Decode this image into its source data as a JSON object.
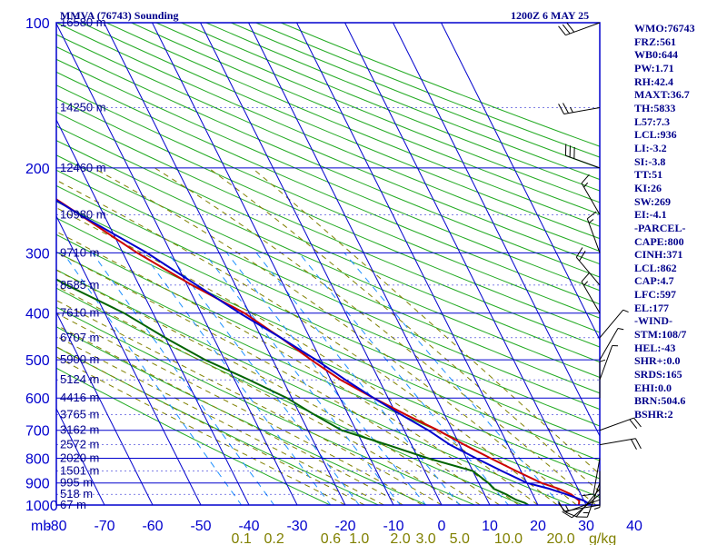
{
  "title": "MMVA (76743) Sounding",
  "valid_time": "1200Z  6 MAY 25",
  "units_label": "mb",
  "mixing_unit": "g/kg",
  "colors": {
    "frame": "#0000cd",
    "isotherm": "#0000cd",
    "dry_adiabat": "#22aa22",
    "moist_adiabat": "#808000",
    "mixing_ratio": "#1e90ff",
    "temperature": "#cc0000",
    "dewpoint": "#006400",
    "virtual_temp": "#0000cd",
    "wind_barb": "#000000",
    "text": "#00008b"
  },
  "stats": [
    "WMO:76743",
    "FRZ:561",
    "WB0:644",
    "PW:1.71",
    "RH:42.4",
    "MAXT:36.7",
    "TH:5833",
    "L57:7.3",
    "LCL:936",
    "LI:-3.2",
    "SI:-3.8",
    "TT:51",
    "KI:26",
    "SW:269",
    "EI:-4.1",
    "-PARCEL-",
    "CAPE:800",
    "CINH:371",
    "LCL:862",
    "CAP:4.7",
    "LFC:597",
    "EL:177",
    "-WIND-",
    "STM:108/7",
    "HEL:-43",
    "SHR+:0.0",
    "SRDS:165",
    "EHI:0.0",
    "BRN:504.6",
    "BSHR:2"
  ],
  "chart_data": {
    "type": "line",
    "diagram": "skew-T log-P",
    "title": "MMVA (76743) Sounding",
    "subtitle": "1200Z  6 MAY 25",
    "y_axis": {
      "label": "mb",
      "scale": "log",
      "ylim": [
        1000,
        100
      ],
      "ticks": [
        100,
        200,
        300,
        400,
        500,
        600,
        700,
        800,
        900,
        1000
      ]
    },
    "x_axis": {
      "ticks": [
        -80,
        -70,
        -60,
        -50,
        -40,
        -30,
        -20,
        -10,
        0,
        10,
        20,
        30,
        40
      ]
    },
    "mixing_ratio_labels": [
      "0.1",
      "0.2",
      "0.6",
      "1.0",
      "2.0",
      "3.0",
      "5.0",
      "10.0",
      "20.0"
    ],
    "height_labels": [
      {
        "pressure": 100,
        "label": "16580 m"
      },
      {
        "pressure": 150,
        "label": "14250 m"
      },
      {
        "pressure": 200,
        "label": "12460 m"
      },
      {
        "pressure": 250,
        "label": "10980 m"
      },
      {
        "pressure": 300,
        "label": "9710 m"
      },
      {
        "pressure": 350,
        "label": "8585 m"
      },
      {
        "pressure": 400,
        "label": "7610 m"
      },
      {
        "pressure": 450,
        "label": "6707 m"
      },
      {
        "pressure": 500,
        "label": "5900 m"
      },
      {
        "pressure": 550,
        "label": "5124 m"
      },
      {
        "pressure": 600,
        "label": "4416 m"
      },
      {
        "pressure": 650,
        "label": "3765 m"
      },
      {
        "pressure": 700,
        "label": "3162 m"
      },
      {
        "pressure": 750,
        "label": "2572 m"
      },
      {
        "pressure": 800,
        "label": "2020 m"
      },
      {
        "pressure": 850,
        "label": "1501 m"
      },
      {
        "pressure": 900,
        "label": "995 m"
      },
      {
        "pressure": 950,
        "label": "518 m"
      },
      {
        "pressure": 1000,
        "label": "67 m"
      }
    ],
    "series": [
      {
        "key": "temperature",
        "points": [
          [
            1000,
            28.5
          ],
          [
            980,
            29
          ],
          [
            950,
            28
          ],
          [
            925,
            26
          ],
          [
            900,
            23
          ],
          [
            850,
            19
          ],
          [
            800,
            15
          ],
          [
            750,
            11
          ],
          [
            700,
            7
          ],
          [
            650,
            2
          ],
          [
            600,
            -3
          ],
          [
            550,
            -8
          ],
          [
            500,
            -12
          ],
          [
            450,
            -16
          ],
          [
            400,
            -21
          ],
          [
            350,
            -29
          ],
          [
            300,
            -37
          ],
          [
            250,
            -45
          ],
          [
            200,
            -55
          ],
          [
            150,
            -66
          ],
          [
            125,
            -72
          ],
          [
            100,
            -80
          ]
        ]
      },
      {
        "key": "dewpoint",
        "points": [
          [
            1000,
            18
          ],
          [
            990,
            17.5
          ],
          [
            975,
            16
          ],
          [
            950,
            14.5
          ],
          [
            925,
            12.5
          ],
          [
            900,
            12
          ],
          [
            850,
            10
          ],
          [
            800,
            2
          ],
          [
            750,
            -5
          ],
          [
            700,
            -13
          ],
          [
            650,
            -17
          ],
          [
            600,
            -21
          ],
          [
            550,
            -27
          ],
          [
            500,
            -34
          ],
          [
            450,
            -40
          ],
          [
            400,
            -46
          ],
          [
            350,
            -55
          ],
          [
            300,
            -64
          ],
          [
            250,
            -65
          ],
          [
            200,
            -76
          ],
          [
            150,
            -85
          ],
          [
            125,
            -91
          ],
          [
            100,
            -100
          ]
        ]
      },
      {
        "key": "virtual_temp",
        "points": [
          [
            1000,
            31
          ],
          [
            980,
            30
          ],
          [
            950,
            27
          ],
          [
            925,
            24
          ],
          [
            900,
            20
          ],
          [
            850,
            16
          ],
          [
            800,
            12
          ],
          [
            750,
            8
          ],
          [
            700,
            5
          ],
          [
            650,
            1
          ],
          [
            600,
            -3
          ],
          [
            550,
            -7
          ],
          [
            500,
            -11
          ],
          [
            450,
            -16
          ],
          [
            400,
            -22
          ],
          [
            350,
            -28
          ],
          [
            300,
            -35
          ],
          [
            250,
            -45
          ],
          [
            200,
            -56
          ],
          [
            150,
            -68
          ],
          [
            125,
            -73
          ],
          [
            100,
            -80
          ]
        ]
      }
    ],
    "wind_barbs": [
      {
        "pressure": 1000,
        "dir": 260,
        "kt": 15
      },
      {
        "pressure": 975,
        "dir": 250,
        "kt": 10
      },
      {
        "pressure": 950,
        "dir": 230,
        "kt": 10
      },
      {
        "pressure": 925,
        "dir": 220,
        "kt": 10
      },
      {
        "pressure": 900,
        "dir": 200,
        "kt": 15
      },
      {
        "pressure": 850,
        "dir": 180,
        "kt": 5
      },
      {
        "pressure": 800,
        "dir": 190,
        "kt": 10
      },
      {
        "pressure": 750,
        "dir": 80,
        "kt": 20
      },
      {
        "pressure": 700,
        "dir": 70,
        "kt": 20
      },
      {
        "pressure": 600,
        "dir": 0,
        "kt": 5
      },
      {
        "pressure": 550,
        "dir": 20,
        "kt": 5
      },
      {
        "pressure": 500,
        "dir": 30,
        "kt": 5
      },
      {
        "pressure": 450,
        "dir": 40,
        "kt": 5
      },
      {
        "pressure": 400,
        "dir": 330,
        "kt": 15
      },
      {
        "pressure": 350,
        "dir": 320,
        "kt": 20
      },
      {
        "pressure": 300,
        "dir": 340,
        "kt": 15
      },
      {
        "pressure": 250,
        "dir": 330,
        "kt": 15
      },
      {
        "pressure": 200,
        "dir": 290,
        "kt": 30
      },
      {
        "pressure": 150,
        "dir": 260,
        "kt": 25
      },
      {
        "pressure": 100,
        "dir": 250,
        "kt": 30
      }
    ]
  }
}
